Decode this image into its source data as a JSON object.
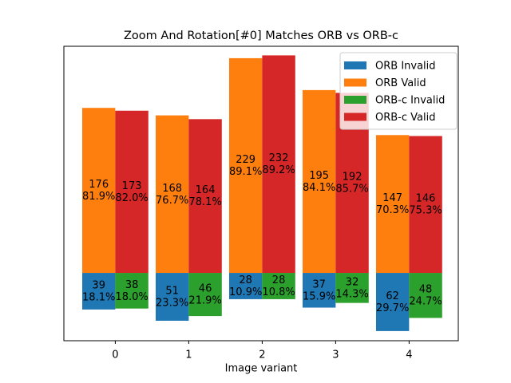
{
  "chart_data": {
    "type": "bar",
    "title": "Zoom And Rotation[#0] Matches ORB vs ORB-c",
    "x_label": "Image variant",
    "x": [
      0,
      1,
      2,
      3,
      4
    ],
    "xlim": [
      -0.7,
      4.67
    ],
    "xticks": [
      0,
      1,
      2,
      3,
      4
    ],
    "ylim": [
      -72.3,
      241.7
    ],
    "yticks": [],
    "legend": "upper right",
    "series": [
      {
        "name": "ORB Invalid",
        "color": "#1f77b4",
        "values": [
          -39,
          -51,
          -28,
          -37,
          -62
        ],
        "value_labels": [
          "39",
          "51",
          "28",
          "37",
          "62"
        ],
        "percent_labels": [
          "18.1%",
          "23.3%",
          "10.9%",
          "15.9%",
          "29.7%"
        ]
      },
      {
        "name": "ORB Valid",
        "color": "#ff7f0e",
        "values": [
          176,
          168,
          229,
          195,
          147
        ],
        "percent_labels": [
          "81.9%",
          "76.7%",
          "89.1%",
          "84.1%",
          "70.3%"
        ]
      },
      {
        "name": "ORB-c Invalid",
        "color": "#2ca02c",
        "values": [
          -38,
          -46,
          -28,
          -32,
          -48
        ],
        "value_labels": [
          "38",
          "46",
          "28",
          "32",
          "48"
        ],
        "percent_labels": [
          "18.0%",
          "21.9%",
          "10.8%",
          "14.3%",
          "24.7%"
        ]
      },
      {
        "name": "ORB-c Valid",
        "color": "#d62728",
        "values": [
          173,
          164,
          232,
          192,
          146
        ],
        "percent_labels": [
          "82.0%",
          "78.1%",
          "89.2%",
          "85.7%",
          "75.3%"
        ]
      }
    ]
  }
}
